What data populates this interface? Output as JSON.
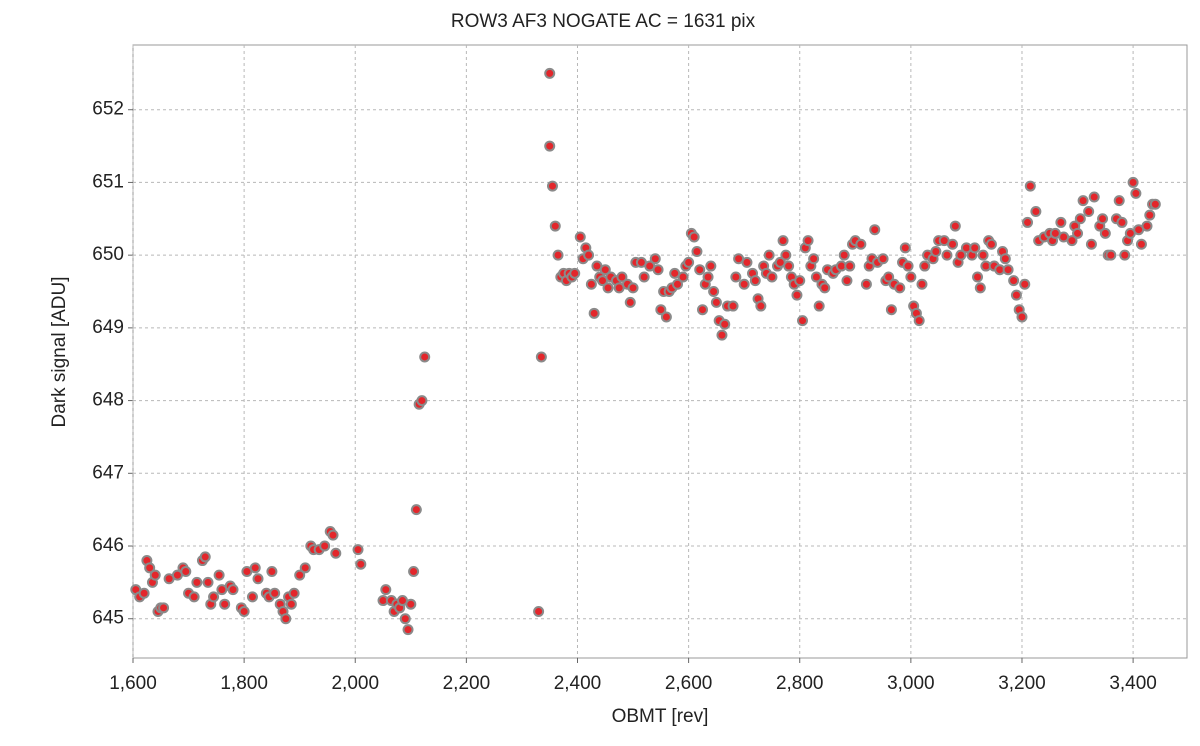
{
  "chart_data": {
    "type": "scatter",
    "title": "ROW3 AF3 NOGATE AC = 1631 pix",
    "x_label": "OBMT [rev]",
    "y_label": "Dark signal [ADU]",
    "color": "#e3262b",
    "edge_color": "#8a8a8a",
    "grid": true,
    "xlim": [
      1600,
      3497
    ],
    "ylim": [
      644.46,
      652.89
    ],
    "xticks": [
      {
        "value": 1600,
        "label": "1,600"
      },
      {
        "value": 1800,
        "label": "1,800"
      },
      {
        "value": 2000,
        "label": "2,000"
      },
      {
        "value": 2200,
        "label": "2,200"
      },
      {
        "value": 2400,
        "label": "2,400"
      },
      {
        "value": 2600,
        "label": "2,600"
      },
      {
        "value": 2800,
        "label": "2,800"
      },
      {
        "value": 3000,
        "label": "3,000"
      },
      {
        "value": 3200,
        "label": "3,200"
      },
      {
        "value": 3400,
        "label": "3,400"
      }
    ],
    "yticks": [
      645,
      646,
      647,
      648,
      649,
      650,
      651,
      652
    ],
    "x": [
      1605,
      1612,
      1620,
      1625,
      1630,
      1635,
      1640,
      1645,
      1650,
      1655,
      1665,
      1680,
      1690,
      1695,
      1700,
      1710,
      1715,
      1725,
      1730,
      1735,
      1740,
      1745,
      1755,
      1760,
      1765,
      1775,
      1780,
      1795,
      1800,
      1805,
      1815,
      1820,
      1825,
      1840,
      1845,
      1850,
      1855,
      1865,
      1870,
      1875,
      1880,
      1885,
      1890,
      1900,
      1910,
      1920,
      1925,
      1935,
      1945,
      1955,
      1960,
      1965,
      2005,
      2010,
      2050,
      2055,
      2065,
      2070,
      2075,
      2080,
      2085,
      2090,
      2095,
      2100,
      2105,
      2110,
      2115,
      2120,
      2125,
      2330,
      2335,
      2350,
      2350,
      2355,
      2360,
      2365,
      2370,
      2375,
      2380,
      2385,
      2390,
      2395,
      2405,
      2410,
      2415,
      2420,
      2425,
      2430,
      2435,
      2440,
      2445,
      2450,
      2455,
      2460,
      2470,
      2475,
      2480,
      2490,
      2495,
      2500,
      2505,
      2515,
      2520,
      2530,
      2540,
      2545,
      2550,
      2555,
      2560,
      2565,
      2570,
      2575,
      2580,
      2590,
      2595,
      2600,
      2605,
      2610,
      2615,
      2620,
      2625,
      2630,
      2635,
      2640,
      2645,
      2650,
      2655,
      2660,
      2665,
      2670,
      2680,
      2685,
      2690,
      2700,
      2705,
      2715,
      2720,
      2725,
      2730,
      2735,
      2740,
      2745,
      2750,
      2760,
      2765,
      2770,
      2775,
      2780,
      2785,
      2790,
      2795,
      2800,
      2805,
      2810,
      2815,
      2820,
      2825,
      2830,
      2835,
      2840,
      2845,
      2850,
      2860,
      2865,
      2875,
      2880,
      2885,
      2890,
      2895,
      2900,
      2910,
      2920,
      2925,
      2930,
      2935,
      2940,
      2950,
      2955,
      2960,
      2965,
      2970,
      2980,
      2985,
      2990,
      2995,
      3000,
      3005,
      3010,
      3015,
      3020,
      3025,
      3030,
      3040,
      3045,
      3050,
      3060,
      3065,
      3075,
      3080,
      3085,
      3090,
      3100,
      3110,
      3115,
      3120,
      3125,
      3130,
      3135,
      3140,
      3145,
      3150,
      3160,
      3165,
      3170,
      3175,
      3185,
      3190,
      3195,
      3200,
      3205,
      3210,
      3215,
      3225,
      3230,
      3240,
      3250,
      3255,
      3260,
      3270,
      3275,
      3290,
      3295,
      3300,
      3305,
      3310,
      3320,
      3325,
      3330,
      3340,
      3345,
      3350,
      3355,
      3360,
      3370,
      3375,
      3380,
      3385,
      3390,
      3395,
      3400,
      3405,
      3410,
      3415,
      3425,
      3430,
      3435,
      3440
    ],
    "values": [
      645.4,
      645.3,
      645.35,
      645.8,
      645.7,
      645.5,
      645.6,
      645.1,
      645.15,
      645.15,
      645.55,
      645.6,
      645.7,
      645.65,
      645.35,
      645.3,
      645.5,
      645.8,
      645.85,
      645.5,
      645.2,
      645.3,
      645.6,
      645.4,
      645.2,
      645.45,
      645.4,
      645.15,
      645.1,
      645.65,
      645.3,
      645.7,
      645.55,
      645.35,
      645.3,
      645.65,
      645.35,
      645.2,
      645.1,
      645.0,
      645.3,
      645.2,
      645.35,
      645.6,
      645.7,
      646.0,
      645.95,
      645.95,
      646.0,
      646.2,
      646.15,
      645.9,
      645.95,
      645.75,
      645.25,
      645.4,
      645.25,
      645.1,
      645.2,
      645.15,
      645.25,
      645.0,
      644.85,
      645.2,
      645.65,
      646.5,
      647.95,
      648.0,
      648.6,
      645.1,
      648.6,
      652.5,
      651.5,
      650.95,
      650.4,
      650.0,
      649.7,
      649.75,
      649.65,
      649.75,
      649.7,
      649.75,
      650.25,
      649.95,
      650.1,
      650.0,
      649.6,
      649.2,
      649.85,
      649.7,
      649.65,
      649.8,
      649.55,
      649.7,
      649.65,
      649.55,
      649.7,
      649.6,
      649.35,
      649.55,
      649.9,
      649.9,
      649.7,
      649.85,
      649.95,
      649.8,
      649.25,
      649.5,
      649.15,
      649.5,
      649.55,
      649.75,
      649.6,
      649.7,
      649.85,
      649.9,
      650.3,
      650.25,
      650.05,
      649.8,
      649.25,
      649.6,
      649.7,
      649.85,
      649.5,
      649.35,
      649.1,
      648.9,
      649.05,
      649.3,
      649.3,
      649.7,
      649.95,
      649.6,
      649.9,
      649.75,
      649.65,
      649.4,
      649.3,
      649.85,
      649.75,
      650.0,
      649.7,
      649.85,
      649.9,
      650.2,
      650.0,
      649.85,
      649.7,
      649.6,
      649.45,
      649.65,
      649.1,
      650.1,
      650.2,
      649.85,
      649.95,
      649.7,
      649.3,
      649.6,
      649.55,
      649.8,
      649.75,
      649.8,
      649.85,
      650.0,
      649.65,
      649.85,
      650.15,
      650.2,
      650.15,
      649.6,
      649.85,
      649.95,
      650.35,
      649.9,
      649.95,
      649.65,
      649.7,
      649.25,
      649.6,
      649.55,
      649.9,
      650.1,
      649.85,
      649.7,
      649.3,
      649.2,
      649.1,
      649.6,
      649.85,
      650.0,
      649.95,
      650.05,
      650.2,
      650.2,
      650.0,
      650.15,
      650.4,
      649.9,
      650.0,
      650.1,
      650.0,
      650.1,
      649.7,
      649.55,
      650.0,
      649.85,
      650.2,
      650.15,
      649.85,
      649.8,
      650.05,
      649.95,
      649.8,
      649.65,
      649.45,
      649.25,
      649.15,
      649.6,
      650.45,
      650.95,
      650.6,
      650.2,
      650.25,
      650.3,
      650.2,
      650.3,
      650.45,
      650.25,
      650.2,
      650.4,
      650.3,
      650.5,
      650.75,
      650.6,
      650.15,
      650.8,
      650.4,
      650.5,
      650.3,
      650.0,
      650.0,
      650.5,
      650.75,
      650.45,
      650.0,
      650.2,
      650.3,
      651.0,
      650.85,
      650.35,
      650.15,
      650.4,
      650.55,
      650.7,
      650.7
    ]
  }
}
